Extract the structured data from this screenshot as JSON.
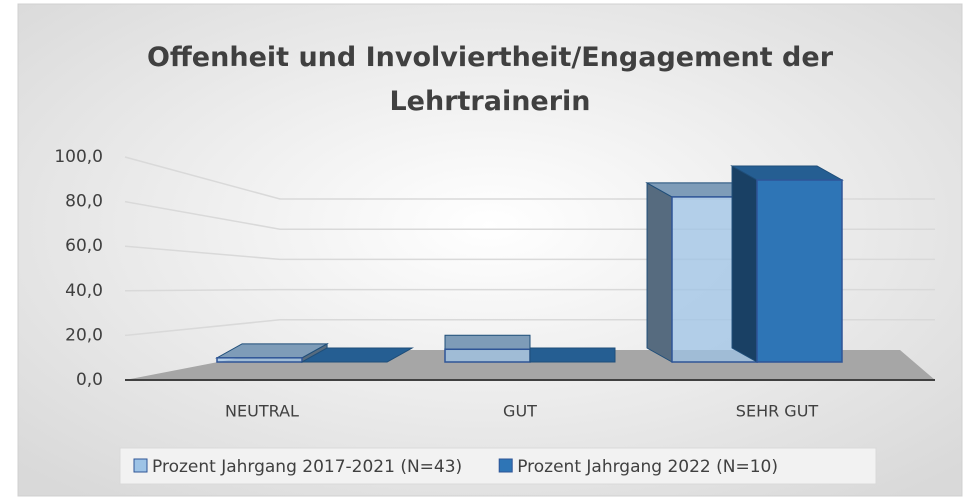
{
  "chart_data": {
    "type": "bar3d",
    "title": "Offenheit und Involviertheit/Engagement der Lehrtrainerin",
    "categories": [
      "NEUTRAL",
      "GUT",
      "SEHR GUT"
    ],
    "series": [
      {
        "name": "Prozent Jahrgang 2017-2021 (N=43)",
        "color": "#9dc3e6",
        "values": [
          2.3,
          7.0,
          90.7
        ]
      },
      {
        "name": "Prozent Jahrgang 2022 (N=10)",
        "color": "#2e75b6",
        "values": [
          0,
          0,
          100
        ]
      }
    ],
    "ylim": [
      0,
      100
    ],
    "yticks": [
      {
        "value": 0,
        "label": "0,0"
      },
      {
        "value": 20,
        "label": "20,0"
      },
      {
        "value": 40,
        "label": "40,0"
      },
      {
        "value": 60,
        "label": "60,0"
      },
      {
        "value": 80,
        "label": "80,0"
      },
      {
        "value": 100,
        "label": "100,0"
      }
    ],
    "grid": true,
    "legend": "bottom"
  }
}
